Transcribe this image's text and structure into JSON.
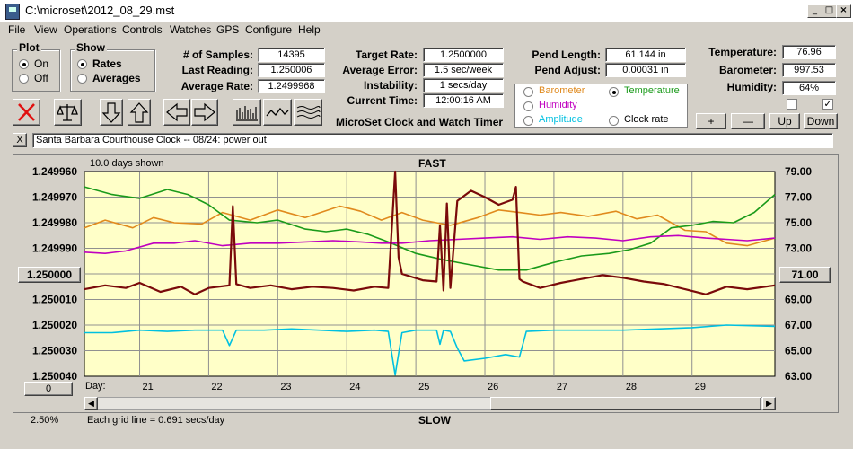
{
  "window": {
    "title": "C:\\microset\\2012_08_29.mst"
  },
  "menu": [
    "File",
    "View",
    "Operations",
    "Controls",
    "Watches",
    "GPS",
    "Configure",
    "Help"
  ],
  "plot_group": {
    "title": "Plot",
    "on": "On",
    "off": "Off",
    "selected": "On"
  },
  "show_group": {
    "title": "Show",
    "rates": "Rates",
    "averages": "Averages",
    "selected": "Rates"
  },
  "stats": {
    "samples_label": "# of Samples:",
    "samples": "14395",
    "last_reading_label": "Last Reading:",
    "last_reading": "1.250006",
    "average_rate_label": "Average Rate:",
    "average_rate": "1.2499968",
    "target_rate_label": "Target Rate:",
    "target_rate": "1.2500000",
    "average_error_label": "Average Error:",
    "average_error": "1.5 sec/week",
    "instability_label": "Instability:",
    "instability": "1 secs/day",
    "current_time_label": "Current Time:",
    "current_time": "12:00:16 AM",
    "pend_length_label": "Pend Length:",
    "pend_length": "61.144 in",
    "pend_adjust_label": "Pend Adjust:",
    "pend_adjust": "0.00031 in",
    "temperature_label": "Temperature:",
    "temperature": "76.96",
    "barometer_label": "Barometer:",
    "barometer": "997.53",
    "humidity_label": "Humidity:",
    "humidity": "64%"
  },
  "app_name": "MicroSet Clock and Watch Timer",
  "aux_options": [
    {
      "label": "Barometer",
      "color": "#e08a1e",
      "selected": false
    },
    {
      "label": "Temperature",
      "color": "#1a9a1a",
      "selected": true
    },
    {
      "label": "Humidity",
      "color": "#c000c0",
      "selected": false
    },
    {
      "label": "Clock rate",
      "color": "#000000",
      "selected": false
    },
    {
      "label": "Amplitude",
      "color": "#00c0e0",
      "selected": false
    }
  ],
  "aux_buttons": {
    "plus": "+",
    "minus": "—",
    "up": "Up",
    "down": "Down"
  },
  "note": {
    "close": "X",
    "text": "Santa Barbara Courthouse Clock  --  08/24: power out"
  },
  "chart_header": {
    "days_shown": "10.0 days shown",
    "fast": "FAST",
    "slow": "SLOW"
  },
  "chart_footer": {
    "percent": "2.50%",
    "grid_line": "Each grid line = 0.691 secs/day",
    "day_label": "Day:"
  },
  "left_buttons": {
    "center": "1.250000",
    "bottom": "0"
  },
  "right_buttons": {
    "center": "71.00"
  },
  "chart_data": {
    "type": "line",
    "x_ticks": [
      "21",
      "22",
      "23",
      "24",
      "25",
      "26",
      "27",
      "28",
      "29"
    ],
    "xlim": [
      20.2,
      30.2
    ],
    "y_left_ticks": [
      "1.249960",
      "1.249970",
      "1.249980",
      "1.249990",
      "1.250000",
      "1.250010",
      "1.250020",
      "1.250030",
      "1.250040"
    ],
    "y_right_ticks": [
      "79.00",
      "77.00",
      "75.00",
      "73.00",
      "71.00",
      "69.00",
      "67.00",
      "65.00",
      "63.00"
    ],
    "y_right_lim": [
      63,
      79
    ],
    "grid": true,
    "background": "#ffffc8",
    "series": [
      {
        "color": "#e08a1e",
        "x": [
          20.2,
          20.5,
          20.9,
          21.2,
          21.5,
          21.9,
          22.2,
          22.6,
          23.0,
          23.4,
          23.9,
          24.2,
          24.5,
          24.8,
          25.1,
          25.5,
          25.9,
          26.2,
          26.5,
          26.8,
          27.1,
          27.5,
          27.9,
          28.2,
          28.5,
          28.9,
          29.2,
          29.5,
          29.8,
          30.2
        ],
        "y": [
          74.6,
          75.2,
          74.6,
          75.4,
          75.0,
          74.9,
          75.8,
          75.2,
          76.0,
          75.4,
          76.3,
          75.9,
          75.2,
          75.8,
          75.2,
          74.8,
          75.4,
          76.0,
          75.8,
          75.6,
          75.8,
          75.5,
          75.9,
          75.3,
          75.6,
          74.4,
          74.3,
          73.4,
          73.2,
          73.8
        ]
      },
      {
        "color": "#1a9a1a",
        "x": [
          20.2,
          20.6,
          21.0,
          21.4,
          21.7,
          22.0,
          22.3,
          22.7,
          23.0,
          23.4,
          23.7,
          24.0,
          24.3,
          24.6,
          25.0,
          25.4,
          25.8,
          26.2,
          26.6,
          27.0,
          27.4,
          27.8,
          28.1,
          28.4,
          28.7,
          29.0,
          29.3,
          29.6,
          29.9,
          30.2
        ],
        "y": [
          77.8,
          77.2,
          76.9,
          77.6,
          77.2,
          76.4,
          75.2,
          75.0,
          75.2,
          74.5,
          74.3,
          74.5,
          74.1,
          73.5,
          72.6,
          72.1,
          71.7,
          71.3,
          71.3,
          71.9,
          72.4,
          72.6,
          72.9,
          73.4,
          74.6,
          74.8,
          75.1,
          75.0,
          75.8,
          77.2
        ]
      },
      {
        "color": "#c000c0",
        "x": [
          20.2,
          20.5,
          20.8,
          21.2,
          21.5,
          21.8,
          22.2,
          22.6,
          23.0,
          23.4,
          23.8,
          24.2,
          24.5,
          24.8,
          25.2,
          25.6,
          26.0,
          26.4,
          26.8,
          27.2,
          27.6,
          28.0,
          28.4,
          28.8,
          29.2,
          29.5,
          29.8,
          30.2
        ],
        "y": [
          72.7,
          72.6,
          72.8,
          73.4,
          73.4,
          73.6,
          73.2,
          73.4,
          73.4,
          73.5,
          73.6,
          73.5,
          73.4,
          73.4,
          73.6,
          73.7,
          73.8,
          73.9,
          73.7,
          73.9,
          73.8,
          73.6,
          73.9,
          74.0,
          73.8,
          73.7,
          73.6,
          73.8
        ]
      },
      {
        "color": "#00c0e0",
        "x": [
          20.2,
          20.6,
          21.0,
          21.4,
          21.8,
          22.2,
          22.3,
          22.4,
          22.8,
          23.2,
          23.6,
          24.0,
          24.4,
          24.6,
          24.7,
          24.8,
          25.0,
          25.3,
          25.35,
          25.4,
          25.5,
          25.6,
          25.7,
          26.0,
          26.3,
          26.5,
          26.6,
          27.0,
          27.5,
          28.0,
          28.5,
          29.0,
          29.5,
          30.2
        ],
        "y": [
          66.4,
          66.4,
          66.6,
          66.5,
          66.6,
          66.6,
          65.4,
          66.6,
          66.6,
          66.7,
          66.6,
          66.5,
          66.6,
          66.5,
          63.1,
          66.4,
          66.6,
          66.6,
          65.5,
          66.6,
          66.5,
          65.2,
          64.2,
          64.4,
          64.7,
          64.5,
          66.5,
          66.6,
          66.6,
          66.6,
          66.7,
          66.8,
          67.0,
          66.9
        ]
      },
      {
        "color": "#7a0a0a",
        "x": [
          20.2,
          20.5,
          20.8,
          21.0,
          21.3,
          21.6,
          21.8,
          22.0,
          22.3,
          22.35,
          22.4,
          22.6,
          22.9,
          23.2,
          23.5,
          23.8,
          24.1,
          24.4,
          24.6,
          24.7,
          24.75,
          24.8,
          25.1,
          25.3,
          25.35,
          25.4,
          25.45,
          25.5,
          25.6,
          25.8,
          26.0,
          26.2,
          26.4,
          26.45,
          26.5,
          26.55,
          26.8,
          27.1,
          27.4,
          27.7,
          28.0,
          28.3,
          28.6,
          28.9,
          29.2,
          29.5,
          29.8,
          30.2
        ],
        "y": [
          69.8,
          70.1,
          69.9,
          70.3,
          69.6,
          70.0,
          69.4,
          69.9,
          70.1,
          76.3,
          70.2,
          69.9,
          70.1,
          69.8,
          70.0,
          69.9,
          69.7,
          70.0,
          69.9,
          79.0,
          72.3,
          71.0,
          70.5,
          70.4,
          74.8,
          69.7,
          76.5,
          69.9,
          76.7,
          77.5,
          77.0,
          76.4,
          76.8,
          77.8,
          70.6,
          70.4,
          69.9,
          70.3,
          70.6,
          70.9,
          70.7,
          70.4,
          70.2,
          69.8,
          69.4,
          70.0,
          69.8,
          70.1
        ]
      }
    ]
  }
}
